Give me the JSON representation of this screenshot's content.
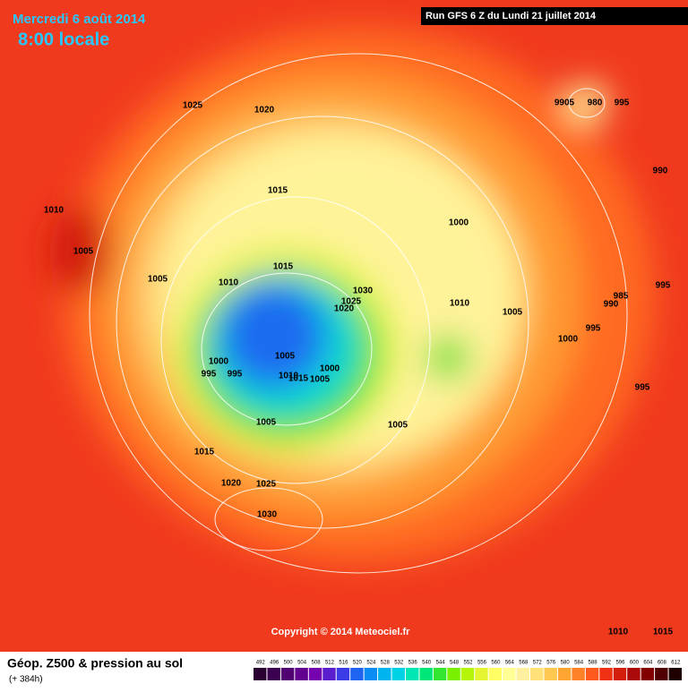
{
  "header": {
    "date": "Mercredi 6 août 2014",
    "time": "8:00 locale",
    "run": "Run GFS 6 Z du Lundi 21 juillet 2014"
  },
  "isobar_labels": [
    1025,
    1020,
    9905,
    980,
    995,
    990,
    1015,
    1010,
    1005,
    1000,
    1015,
    1005,
    1010,
    1030,
    1025,
    1020,
    1010,
    1005,
    985,
    990,
    995,
    995,
    1000,
    1000,
    995,
    995,
    1005,
    1010,
    1015,
    1005,
    1000,
    995,
    1005,
    1005,
    1015,
    1020,
    1025,
    1030,
    1010,
    1015
  ],
  "copyright": "Copyright © 2014 Meteociel.fr",
  "footer": {
    "title": "Géop. Z500 & pression au sol",
    "lead": "(+ 384h)"
  },
  "scale": {
    "values": [
      492,
      496,
      500,
      504,
      508,
      512,
      516,
      520,
      524,
      528,
      532,
      536,
      540,
      544,
      548,
      552,
      556,
      560,
      564,
      568,
      572,
      576,
      580,
      584,
      588,
      592,
      596,
      600,
      604,
      608,
      612
    ],
    "colors": [
      "#2a0033",
      "#3c0050",
      "#500070",
      "#620090",
      "#7400b0",
      "#5a1ecc",
      "#3c3ce6",
      "#1e64f0",
      "#0a8cf5",
      "#00b4f0",
      "#00d2e6",
      "#00e6b4",
      "#00e678",
      "#32e632",
      "#78f000",
      "#b4f50a",
      "#e6f532",
      "#ffff64",
      "#ffff96",
      "#fff0a0",
      "#ffe178",
      "#ffc850",
      "#ffa532",
      "#ff8228",
      "#ff5a1e",
      "#f03214",
      "#d21e0a",
      "#aa0a0a",
      "#820000",
      "#500000",
      "#1e0000"
    ]
  }
}
